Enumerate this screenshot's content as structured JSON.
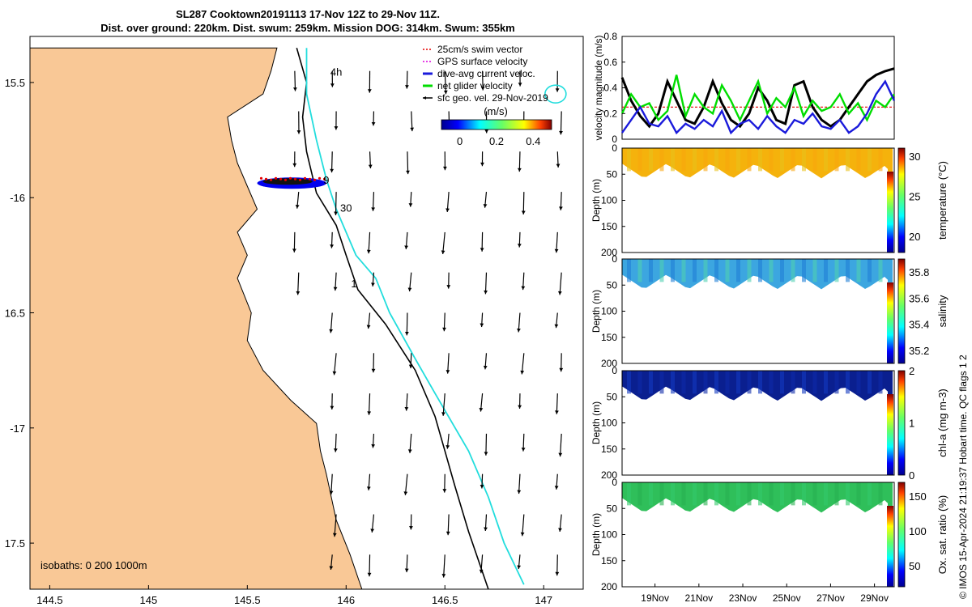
{
  "title_line1": "SL287 Cooktown20191113 17-Nov 12Z to 29-Nov 11Z.",
  "title_line2": "Dist. over ground: 220km. Dist. swum: 259km. Mission DOG: 314km. Swum: 355km",
  "footer": "© IMOS 15-Apr-2024 21:19:37 Hobart time. QC flags 1  2",
  "colors": {
    "land": "#f9c896",
    "isobath200": "#000000",
    "isobath1000": "#22dddd",
    "glider_track": "#0000ee",
    "surface_current": "#e60000",
    "net_glider": "#00dd00",
    "dive_avg": "#1a1adb"
  },
  "chart_data": [
    {
      "type": "map",
      "xlabel": "",
      "ylabel": "",
      "xlim": [
        144.4,
        147.2
      ],
      "ylim": [
        -17.7,
        -15.3
      ],
      "xticks": [
        144.5,
        145,
        145.5,
        146,
        146.5,
        147
      ],
      "xtick_labels": [
        "144.5",
        "145",
        "145.5",
        "146",
        "146.5",
        "147"
      ],
      "yticks": [
        -15.5,
        -16,
        -16.5,
        -17,
        -17.5
      ],
      "ytick_labels": [
        "15.5",
        "-16",
        "16.5",
        "-17",
        "17.5"
      ],
      "isobath_note": "isobaths: 0   200  1000m",
      "day_labels": [
        {
          "text": "4h",
          "lon": 145.95,
          "lat": -15.47
        },
        {
          "text": "9",
          "lon": 145.9,
          "lat": -15.94
        },
        {
          "text": "30",
          "lon": 146.0,
          "lat": -16.06
        },
        {
          "text": "1",
          "lon": 146.04,
          "lat": -16.39
        }
      ],
      "legend": [
        {
          "label": "25cm/s swim vector",
          "color": "#e60000",
          "style": "dash"
        },
        {
          "label": "GPS surface velocity",
          "color": "#dd00dd",
          "style": "dash"
        },
        {
          "label": "dive-avg current veloc.",
          "color": "#1a1adb",
          "style": "solid"
        },
        {
          "label": "net glider velocity",
          "color": "#00dd00",
          "style": "solid"
        },
        {
          "label": "sfc geo. vel. 29-Nov-2019",
          "color": "#000000",
          "style": "arrow"
        }
      ],
      "colorbar": {
        "label": "(m/s)",
        "ticks": [
          0,
          0.2,
          0.4
        ],
        "tick_labels": [
          "0",
          "0.2",
          "0.4"
        ],
        "range": [
          -0.1,
          0.5
        ]
      },
      "coast": [
        [
          144.4,
          -15.35
        ],
        [
          145.65,
          -15.35
        ],
        [
          145.62,
          -15.45
        ],
        [
          145.58,
          -15.55
        ],
        [
          145.4,
          -15.65
        ],
        [
          145.42,
          -15.75
        ],
        [
          145.45,
          -15.85
        ],
        [
          145.5,
          -15.95
        ],
        [
          145.55,
          -16.05
        ],
        [
          145.45,
          -16.15
        ],
        [
          145.5,
          -16.25
        ],
        [
          145.45,
          -16.35
        ],
        [
          145.52,
          -16.5
        ],
        [
          145.5,
          -16.62
        ],
        [
          145.58,
          -16.75
        ],
        [
          145.72,
          -16.88
        ],
        [
          145.85,
          -16.98
        ],
        [
          145.87,
          -17.1
        ],
        [
          145.9,
          -17.2
        ],
        [
          145.95,
          -17.4
        ],
        [
          146.02,
          -17.55
        ],
        [
          146.08,
          -17.7
        ],
        [
          144.4,
          -17.7
        ]
      ],
      "isobath_200": [
        [
          145.75,
          -15.35
        ],
        [
          145.8,
          -15.5
        ],
        [
          145.78,
          -15.65
        ],
        [
          145.8,
          -15.8
        ],
        [
          145.85,
          -15.98
        ],
        [
          145.95,
          -16.12
        ],
        [
          146.0,
          -16.25
        ],
        [
          146.06,
          -16.4
        ],
        [
          146.2,
          -16.55
        ],
        [
          146.35,
          -16.75
        ],
        [
          146.45,
          -16.95
        ],
        [
          146.5,
          -17.1
        ],
        [
          146.55,
          -17.25
        ],
        [
          146.62,
          -17.45
        ],
        [
          146.72,
          -17.7
        ]
      ],
      "isobath_1000": [
        [
          145.8,
          -15.35
        ],
        [
          145.8,
          -15.55
        ],
        [
          145.85,
          -15.75
        ],
        [
          145.9,
          -15.92
        ],
        [
          145.95,
          -16.05
        ],
        [
          146.05,
          -16.25
        ],
        [
          146.15,
          -16.35
        ],
        [
          146.22,
          -16.5
        ],
        [
          146.35,
          -16.7
        ],
        [
          146.45,
          -16.85
        ],
        [
          146.62,
          -17.1
        ],
        [
          146.72,
          -17.3
        ],
        [
          146.8,
          -17.5
        ],
        [
          146.9,
          -17.68
        ]
      ],
      "glider_track": {
        "lon_range": [
          145.55,
          145.9
        ],
        "lat": -15.93
      }
    },
    {
      "type": "line",
      "ylabel": "velocity magnitude (m/s)",
      "ylim": [
        0,
        0.8
      ],
      "yticks": [
        0,
        0.2,
        0.4,
        0.6,
        0.8
      ],
      "ytick_labels": [
        "0",
        "0.2",
        "0.4",
        "0.6",
        "0.8"
      ],
      "xlim": [
        17.5,
        29.9
      ],
      "series": [
        {
          "color": "#000000",
          "values": [
            0.48,
            0.3,
            0.18,
            0.1,
            0.2,
            0.45,
            0.3,
            0.15,
            0.12,
            0.25,
            0.45,
            0.28,
            0.15,
            0.1,
            0.2,
            0.4,
            0.3,
            0.15,
            0.12,
            0.42,
            0.45,
            0.25,
            0.15,
            0.1,
            0.15,
            0.25,
            0.35,
            0.45,
            0.5,
            0.53,
            0.55
          ]
        },
        {
          "color": "#00dd00",
          "values": [
            0.2,
            0.35,
            0.25,
            0.28,
            0.15,
            0.22,
            0.5,
            0.18,
            0.35,
            0.25,
            0.2,
            0.42,
            0.3,
            0.15,
            0.3,
            0.45,
            0.2,
            0.32,
            0.25,
            0.4,
            0.18,
            0.3,
            0.22,
            0.25,
            0.35,
            0.2,
            0.28,
            0.15,
            0.3,
            0.25,
            0.35
          ]
        },
        {
          "color": "#1a1adb",
          "values": [
            0.05,
            0.15,
            0.25,
            0.12,
            0.1,
            0.18,
            0.05,
            0.12,
            0.08,
            0.15,
            0.1,
            0.22,
            0.05,
            0.12,
            0.15,
            0.08,
            0.18,
            0.1,
            0.05,
            0.15,
            0.12,
            0.2,
            0.1,
            0.08,
            0.15,
            0.05,
            0.1,
            0.2,
            0.35,
            0.45,
            0.3
          ]
        }
      ],
      "reference_line": {
        "value": 0.25,
        "color": "#e60000"
      }
    },
    {
      "type": "heatmap",
      "ylabel": "Depth (m)",
      "ylim": [
        200,
        0
      ],
      "yticks": [
        0,
        50,
        100,
        150,
        200
      ],
      "ytick_labels": [
        "0",
        "50",
        "100",
        "150",
        "200"
      ],
      "cbar_label": "temperature (°C)",
      "cbar_ticks": [
        "30",
        "25",
        "20"
      ],
      "cbar_range": [
        18,
        31
      ]
    },
    {
      "type": "heatmap",
      "ylabel": "Depth (m)",
      "ylim": [
        200,
        0
      ],
      "yticks": [
        0,
        50,
        100,
        150,
        200
      ],
      "ytick_labels": [
        "0",
        "50",
        "100",
        "150",
        "200"
      ],
      "cbar_label": "salinity",
      "cbar_ticks": [
        "35.8",
        "35.6",
        "35.4",
        "35.2"
      ],
      "cbar_range": [
        35.1,
        35.9
      ]
    },
    {
      "type": "heatmap",
      "ylabel": "Depth (m)",
      "ylim": [
        200,
        0
      ],
      "yticks": [
        0,
        50,
        100,
        150,
        200
      ],
      "ytick_labels": [
        "0",
        "50",
        "100",
        "150",
        "200"
      ],
      "cbar_label": "chl-a (mg m-3)",
      "cbar_ticks": [
        "2",
        "1",
        "0"
      ],
      "cbar_range": [
        0,
        2
      ]
    },
    {
      "type": "heatmap",
      "ylabel": "Depth (m)",
      "ylim": [
        200,
        0
      ],
      "yticks": [
        0,
        50,
        100,
        150,
        200
      ],
      "ytick_labels": [
        "0",
        "50",
        "100",
        "150",
        "200"
      ],
      "cbar_label": "Ox. sat. ratio (%)",
      "cbar_ticks": [
        "150",
        "100",
        "50"
      ],
      "cbar_range": [
        20,
        170
      ],
      "xticks": [
        19,
        21,
        23,
        25,
        27,
        29
      ],
      "xtick_labels": [
        "19Nov",
        "21Nov",
        "23Nov",
        "25Nov",
        "27Nov",
        "29Nov"
      ]
    }
  ]
}
